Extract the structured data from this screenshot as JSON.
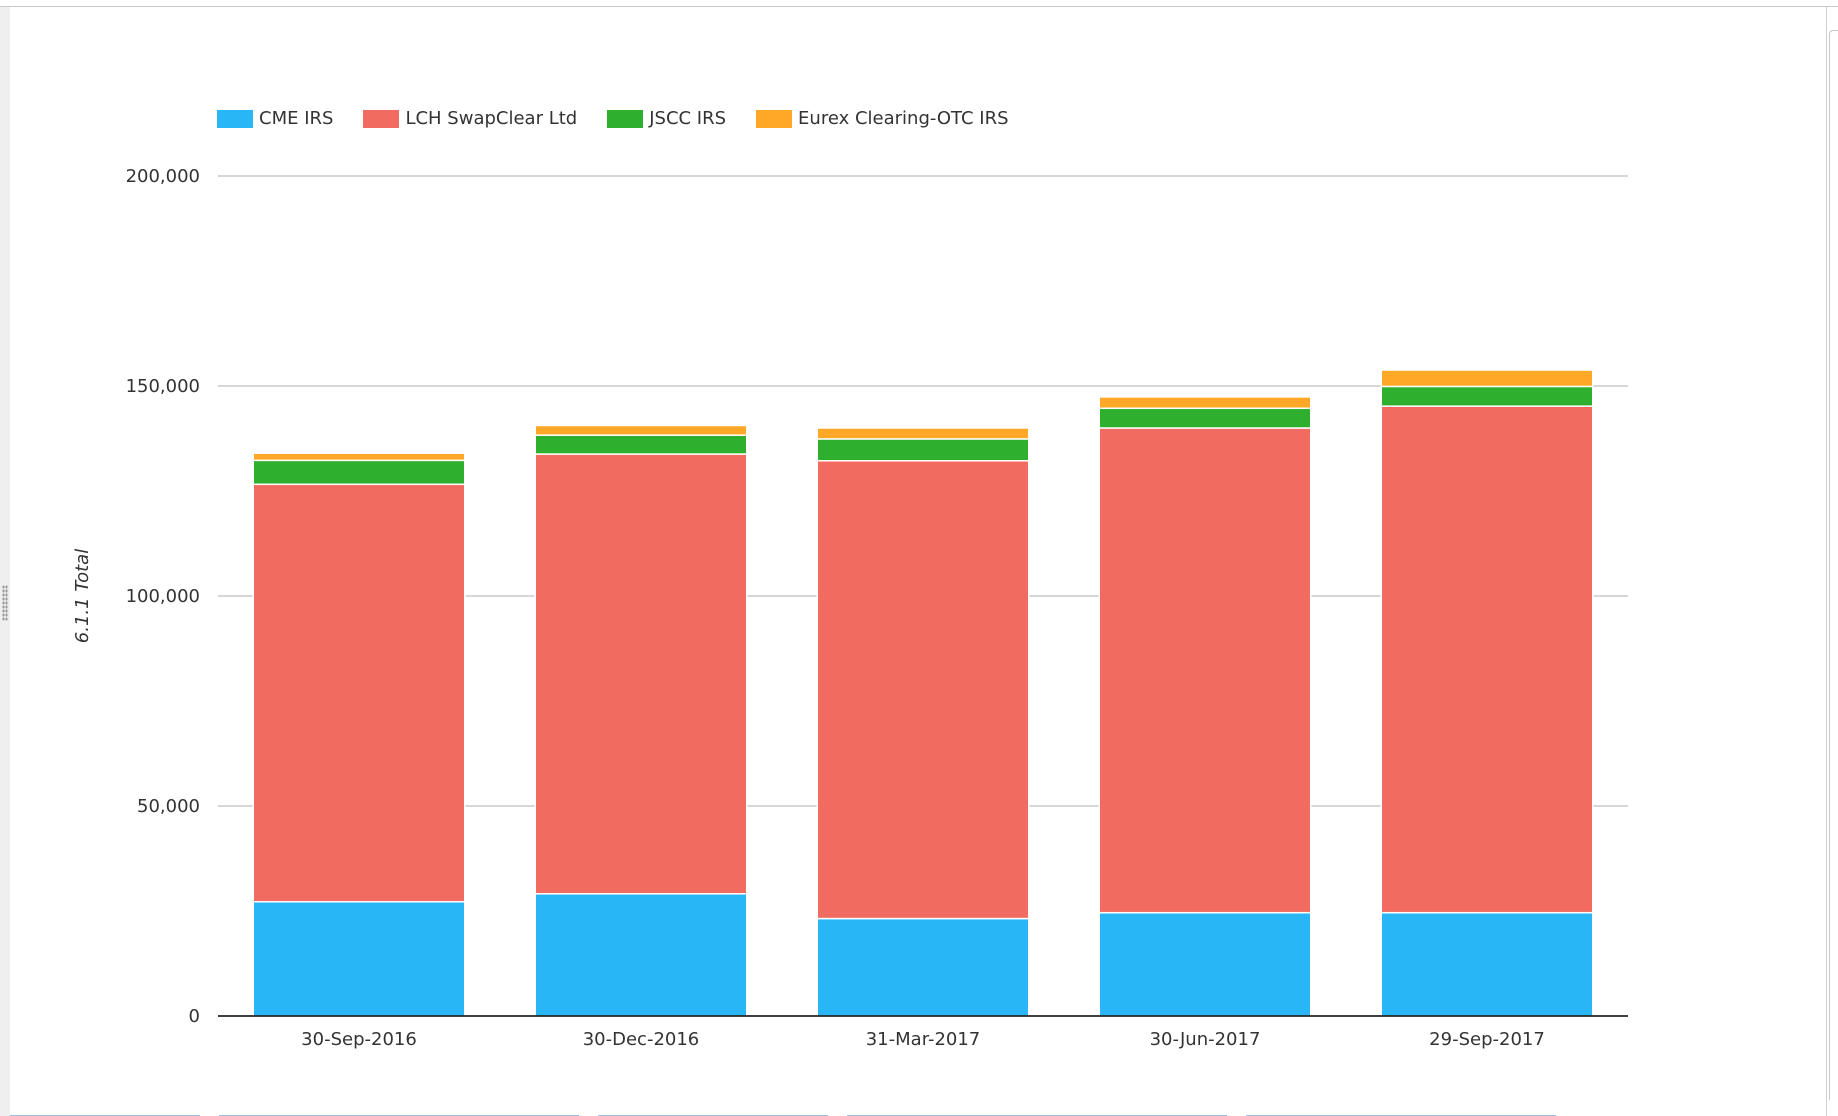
{
  "colors": {
    "cme": "#29b6f6",
    "lch": "#f26b61",
    "jscc": "#2eb02e",
    "eurex": "#ffa726",
    "grid": "#bdbdbd",
    "axis": "#000000",
    "text": "#333333"
  },
  "chart_data": {
    "type": "bar",
    "stacked": true,
    "categories": [
      "30-Sep-2016",
      "30-Dec-2016",
      "31-Mar-2017",
      "30-Jun-2017",
      "29-Sep-2017"
    ],
    "series": [
      {
        "name": "CME IRS",
        "color": "#29b6f6",
        "values": [
          27200,
          29100,
          23200,
          24600,
          24600
        ]
      },
      {
        "name": "LCH SwapClear Ltd",
        "color": "#f26b61",
        "values": [
          99400,
          104700,
          109000,
          115400,
          120600
        ]
      },
      {
        "name": "JSCC IRS",
        "color": "#2eb02e",
        "values": [
          5700,
          4500,
          5200,
          4700,
          4700
        ]
      },
      {
        "name": "Eurex Clearing-OTC IRS",
        "color": "#ffa726",
        "values": [
          1700,
          2300,
          2600,
          2700,
          3900
        ]
      }
    ],
    "ylabel": "6.1.1 Total",
    "xlabel": "",
    "ylim": [
      0,
      200000
    ],
    "yticks": [
      0,
      50000,
      100000,
      150000,
      200000
    ],
    "ytick_labels": [
      "0",
      "50,000",
      "100,000",
      "150,000",
      "200,000"
    ],
    "grid": true,
    "legend_position": "top-left"
  }
}
